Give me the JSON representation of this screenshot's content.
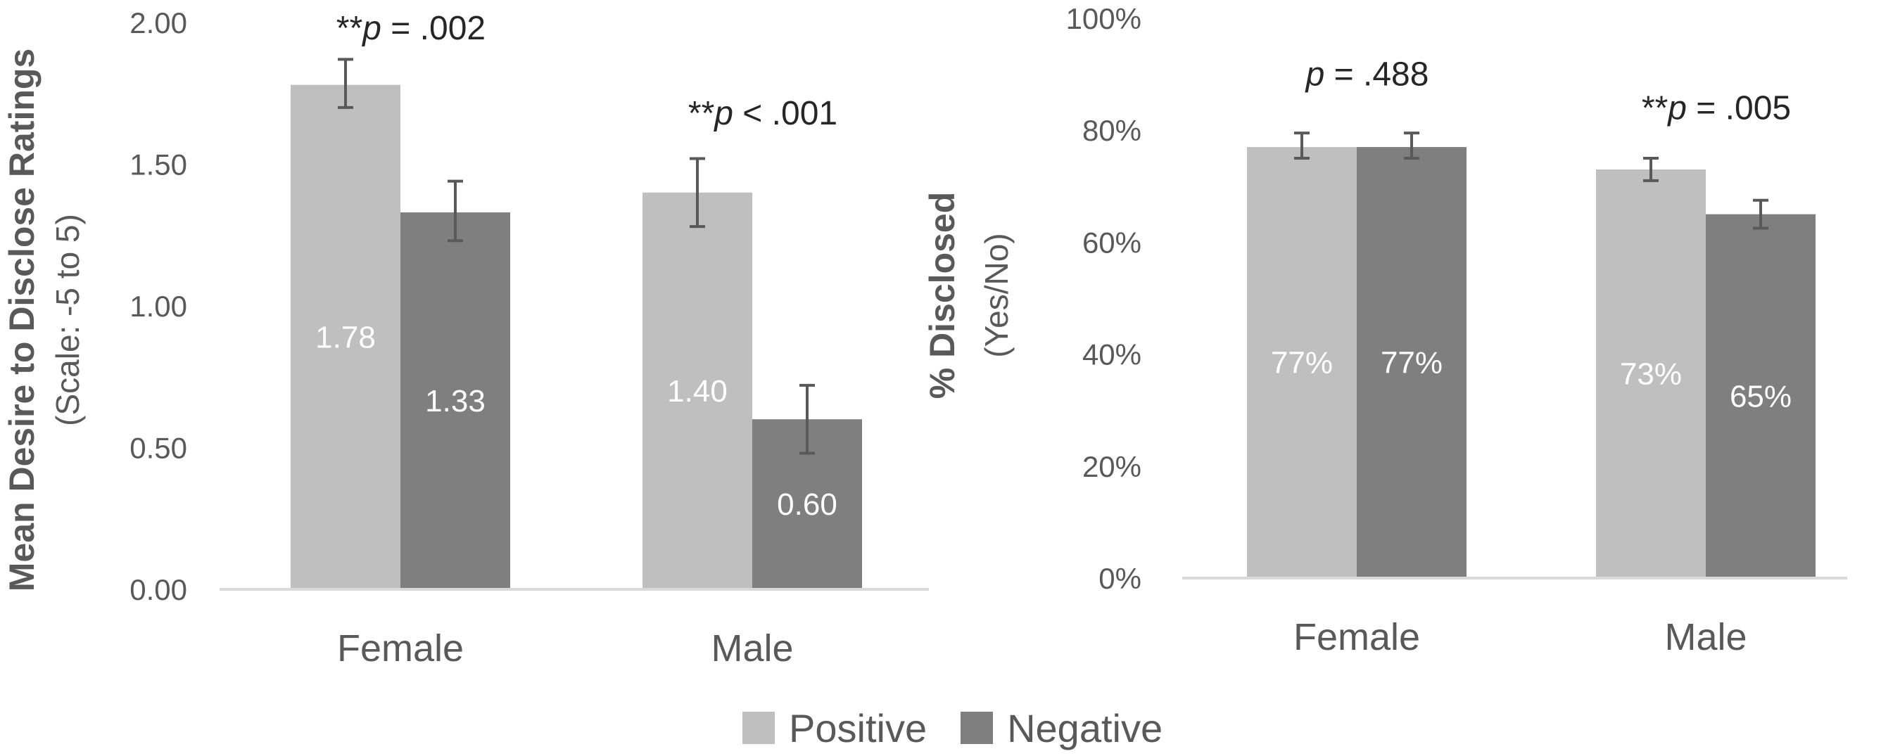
{
  "legend": [
    {
      "name": "Positive",
      "color": "#bfbfbf"
    },
    {
      "name": "Negative",
      "color": "#7f7f7f"
    }
  ],
  "chart_data": [
    {
      "type": "bar",
      "categories": [
        "Female",
        "Male"
      ],
      "series": [
        {
          "name": "Positive",
          "values": [
            1.78,
            1.4
          ],
          "labels": [
            "1.78",
            "1.40"
          ],
          "error_bars": [
            [
              1.7,
              1.87
            ],
            [
              1.28,
              1.52
            ]
          ]
        },
        {
          "name": "Negative",
          "values": [
            1.33,
            0.6
          ],
          "labels": [
            "1.33",
            "0.60"
          ],
          "error_bars": [
            [
              1.23,
              1.44
            ],
            [
              0.48,
              0.72
            ]
          ]
        }
      ],
      "ylim": [
        0,
        2.0
      ],
      "yticks": [
        0.0,
        0.5,
        1.0,
        1.5,
        2.0
      ],
      "ytick_labels": [
        "0.00",
        "0.50",
        "1.00",
        "1.50",
        "2.00"
      ],
      "ylabel": "Mean Desire to Disclose Ratings",
      "ylabel_sub": "(Scale: -5 to 5)",
      "xlabel": "",
      "annotations": [
        {
          "category": "Female",
          "prefix": "**",
          "p": "p",
          "rest": " = .002",
          "y_value": 1.94
        },
        {
          "category": "Male",
          "prefix": "**",
          "p": "p",
          "rest": " < .001",
          "y_value": 1.64
        }
      ]
    },
    {
      "type": "bar",
      "categories": [
        "Female",
        "Male"
      ],
      "series": [
        {
          "name": "Positive",
          "values": [
            77,
            73
          ],
          "labels": [
            "77%",
            "73%"
          ],
          "error_bars": [
            [
              75,
              79.5
            ],
            [
              71,
              75
            ]
          ]
        },
        {
          "name": "Negative",
          "values": [
            77,
            65
          ],
          "labels": [
            "77%",
            "65%"
          ],
          "error_bars": [
            [
              75,
              79.5
            ],
            [
              62.5,
              67.5
            ]
          ]
        }
      ],
      "ylim": [
        0,
        100
      ],
      "yticks": [
        0,
        20,
        40,
        60,
        80,
        100
      ],
      "ytick_labels": [
        "0%",
        "20%",
        "40%",
        "60%",
        "80%",
        "100%"
      ],
      "ylabel": "% Disclosed",
      "ylabel_sub": "(Yes/No)",
      "xlabel": "",
      "annotations": [
        {
          "category": "Female",
          "prefix": "",
          "p": "p",
          "rest": " = .488",
          "y_value": 88
        },
        {
          "category": "Male",
          "prefix": "**",
          "p": "p",
          "rest": " = .005",
          "y_value": 82
        }
      ]
    }
  ]
}
